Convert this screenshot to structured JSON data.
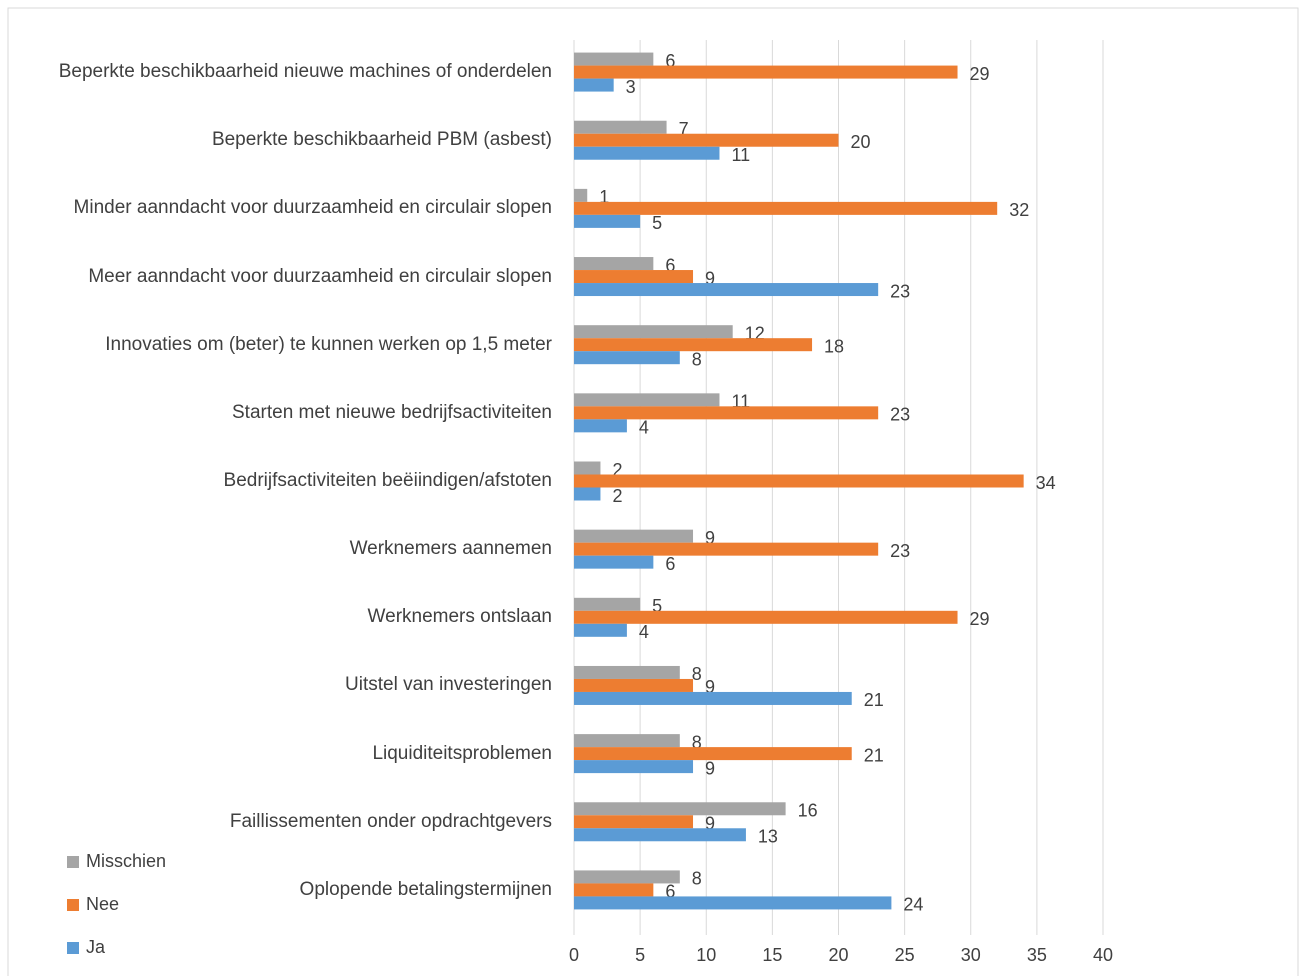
{
  "chart_data": {
    "type": "bar",
    "orientation": "horizontal",
    "categories": [
      "Beperkte beschikbaarheid nieuwe machines of onderdelen",
      "Beperkte beschikbaarheid PBM (asbest)",
      "Minder aanndacht voor duurzaamheid en circulair slopen",
      "Meer aanndacht voor duurzaamheid en circulair slopen",
      "Innovaties om (beter) te kunnen werken op 1,5 meter",
      "Starten met nieuwe bedrijfsactiviteiten",
      "Bedrijfsactiviteiten beëiindigen/afstoten",
      "Werknemers aannemen",
      "Werknemers ontslaan",
      "Uitstel van investeringen",
      "Liquiditeitsproblemen",
      "Faillissementen onder opdrachtgevers",
      "Oplopende betalingstermijnen"
    ],
    "series": [
      {
        "name": "Misschien",
        "color": "#a5a5a5",
        "values": [
          6,
          7,
          1,
          6,
          12,
          11,
          2,
          9,
          5,
          8,
          8,
          16,
          8
        ]
      },
      {
        "name": "Nee",
        "color": "#ed7d31",
        "values": [
          29,
          20,
          32,
          9,
          18,
          23,
          34,
          23,
          29,
          9,
          21,
          9,
          6
        ]
      },
      {
        "name": "Ja",
        "color": "#5b9bd5",
        "values": [
          3,
          11,
          5,
          23,
          8,
          4,
          2,
          6,
          4,
          21,
          9,
          13,
          24
        ]
      }
    ],
    "xlim": [
      0,
      40
    ],
    "xticks": [
      0,
      5,
      10,
      15,
      20,
      25,
      30,
      35,
      40
    ],
    "grid": true,
    "legend": "bottom-left"
  }
}
